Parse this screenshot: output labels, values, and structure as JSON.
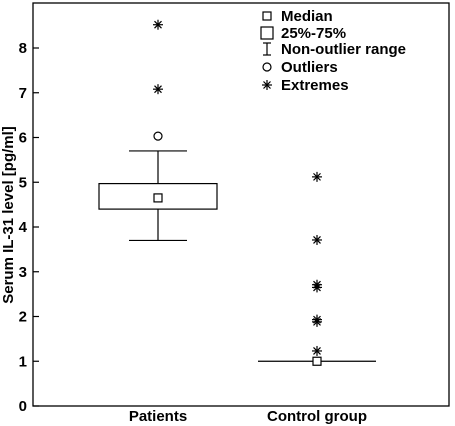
{
  "chart_data": {
    "type": "boxplot",
    "ylabel": "Serum IL-31 level [pg/ml]",
    "ylim": [
      0,
      9
    ],
    "yticks": [
      "0",
      "1",
      "2",
      "3",
      "4",
      "5",
      "6",
      "7",
      "8"
    ],
    "categories": [
      "Patients",
      "Control group"
    ],
    "groups": [
      {
        "name": "Patients",
        "median": 4.65,
        "q1": 4.4,
        "q3": 4.97,
        "whisker_low": 3.7,
        "whisker_high": 5.7,
        "outliers": [
          6.03
        ],
        "extremes": [
          7.08,
          8.52
        ]
      },
      {
        "name": "Control group",
        "median": 1.0,
        "q1": 1.0,
        "q3": 1.0,
        "whisker_low": 1.0,
        "whisker_high": 1.0,
        "outliers": [],
        "extremes": [
          1.23,
          1.88,
          1.93,
          2.65,
          2.71,
          3.71,
          5.12
        ]
      }
    ],
    "legend": {
      "position": "top-right",
      "items": [
        {
          "symbol": "median-square",
          "label": "Median"
        },
        {
          "symbol": "box",
          "label": "25%-75%"
        },
        {
          "symbol": "whisker",
          "label": "Non-outlier range"
        },
        {
          "symbol": "circle",
          "label": "Outliers"
        },
        {
          "symbol": "asterisk",
          "label": "Extremes"
        }
      ]
    },
    "grid": false
  }
}
